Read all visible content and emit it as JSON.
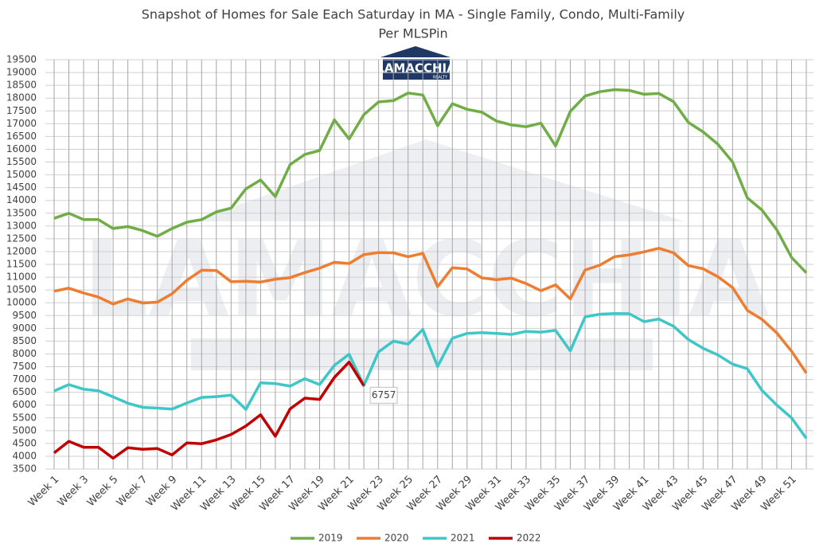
{
  "chart_data": {
    "type": "line",
    "title": "Snapshot of Homes for Sale Each Saturday in MA - Single Family, Condo, Multi-Family",
    "subtitle": "Per MLSPin",
    "logo": {
      "name": "LAMACCHIA",
      "tagline": "REALTY"
    },
    "categories": [
      "Week 1",
      null,
      "Week 3",
      null,
      "Week 5",
      null,
      "Week 7",
      null,
      "Week 9",
      null,
      "Week 11",
      null,
      "Week 13",
      null,
      "Week 15",
      null,
      "Week 17",
      null,
      "Week 19",
      null,
      "Week 21",
      null,
      "Week 23",
      null,
      "Week 25",
      null,
      "Week 27",
      null,
      "Week 29",
      null,
      "Week 31",
      null,
      "Week 33",
      null,
      "Week 35",
      null,
      "Week 37",
      null,
      "Week 39",
      null,
      "Week 41",
      null,
      "Week 43",
      null,
      "Week 45",
      null,
      "Week 47",
      null,
      "Week 49",
      null,
      "Week 51",
      null
    ],
    "series": [
      {
        "name": "2019",
        "color": "#70ad47",
        "values": [
          13300,
          13500,
          13250,
          13250,
          12900,
          12980,
          12820,
          12600,
          12900,
          13150,
          13250,
          13550,
          13700,
          14450,
          14800,
          14150,
          15400,
          15800,
          15950,
          17150,
          16400,
          17350,
          17850,
          17900,
          18200,
          18120,
          16920,
          17780,
          17560,
          17450,
          17100,
          16950,
          16880,
          17020,
          16130,
          17480,
          18080,
          18250,
          18330,
          18300,
          18150,
          18180,
          17860,
          17050,
          16680,
          16200,
          15500,
          14100,
          13620,
          12850,
          11770,
          11170
        ]
      },
      {
        "name": "2020",
        "color": "#ed7d31",
        "values": [
          10450,
          10570,
          10380,
          10220,
          9950,
          10150,
          9990,
          10020,
          10350,
          10880,
          11270,
          11260,
          10820,
          10840,
          10810,
          10920,
          10980,
          11180,
          11350,
          11580,
          11530,
          11880,
          11960,
          11950,
          11800,
          11930,
          10630,
          11370,
          11320,
          10970,
          10900,
          10960,
          10750,
          10470,
          10700,
          10150,
          11280,
          11470,
          11800,
          11870,
          11990,
          12130,
          11950,
          11450,
          11330,
          11020,
          10590,
          9700,
          9350,
          8820,
          8100,
          7250
        ]
      },
      {
        "name": "2021",
        "color": "#3fc6c8",
        "values": [
          6550,
          6800,
          6620,
          6560,
          6320,
          6070,
          5910,
          5880,
          5840,
          6080,
          6300,
          6330,
          6390,
          5830,
          6870,
          6840,
          6740,
          7030,
          6800,
          7550,
          7990,
          6760,
          8080,
          8500,
          8380,
          8950,
          7510,
          8610,
          8800,
          8830,
          8800,
          8760,
          8880,
          8850,
          8920,
          8120,
          9450,
          9550,
          9580,
          9570,
          9260,
          9360,
          9080,
          8560,
          8220,
          7960,
          7600,
          7420,
          6570,
          6000,
          5500,
          4700
        ]
      },
      {
        "name": "2022",
        "color": "#c00000",
        "values": [
          4130,
          4580,
          4350,
          4350,
          3920,
          4330,
          4270,
          4300,
          4050,
          4520,
          4490,
          4640,
          4850,
          5180,
          5620,
          4780,
          5850,
          6270,
          6220,
          7080,
          7680,
          6757,
          null,
          null,
          null,
          null,
          null,
          null,
          null,
          null,
          null,
          null,
          null,
          null,
          null,
          null,
          null,
          null,
          null,
          null,
          null,
          null,
          null,
          null,
          null,
          null,
          null,
          null,
          null,
          null,
          null,
          null
        ]
      }
    ],
    "ylim": [
      3500,
      19500
    ],
    "yticks": [
      3500,
      4000,
      4500,
      5000,
      5500,
      6000,
      6500,
      7000,
      7500,
      8000,
      8500,
      9000,
      9500,
      10000,
      10500,
      11000,
      11500,
      12000,
      12500,
      13000,
      13500,
      14000,
      14500,
      15000,
      15500,
      16000,
      16500,
      17000,
      17500,
      18000,
      18500,
      19000,
      19500
    ],
    "grid": true,
    "legend": "bottom"
  }
}
